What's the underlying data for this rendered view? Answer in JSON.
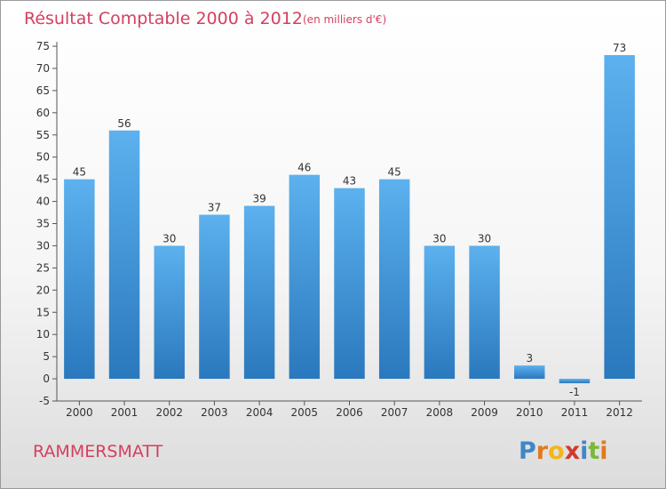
{
  "chart_data": {
    "type": "bar",
    "title": "Résultat Comptable 2000 à 2012",
    "subtitle": "(en milliers d'€)",
    "categories": [
      "2000",
      "2001",
      "2002",
      "2003",
      "2004",
      "2005",
      "2006",
      "2007",
      "2008",
      "2009",
      "2010",
      "2011",
      "2012"
    ],
    "values": [
      45,
      56,
      30,
      37,
      39,
      46,
      43,
      45,
      30,
      30,
      3,
      -1,
      73
    ],
    "ylim": [
      -5,
      75
    ],
    "yticks": [
      -5,
      0,
      5,
      10,
      15,
      20,
      25,
      30,
      35,
      40,
      45,
      50,
      55,
      60,
      65,
      70,
      75
    ],
    "grid": false,
    "bar_color": "#4a9ee0"
  },
  "place_name": "RAMMERSMATT",
  "brand": {
    "letters": [
      "P",
      "r",
      "o",
      "x",
      "i",
      "t",
      "i"
    ],
    "colors": [
      "#3f87c8",
      "#e07a1f",
      "#f2b619",
      "#d23a2e",
      "#3f87c8",
      "#7ab83a",
      "#e07a1f"
    ]
  }
}
